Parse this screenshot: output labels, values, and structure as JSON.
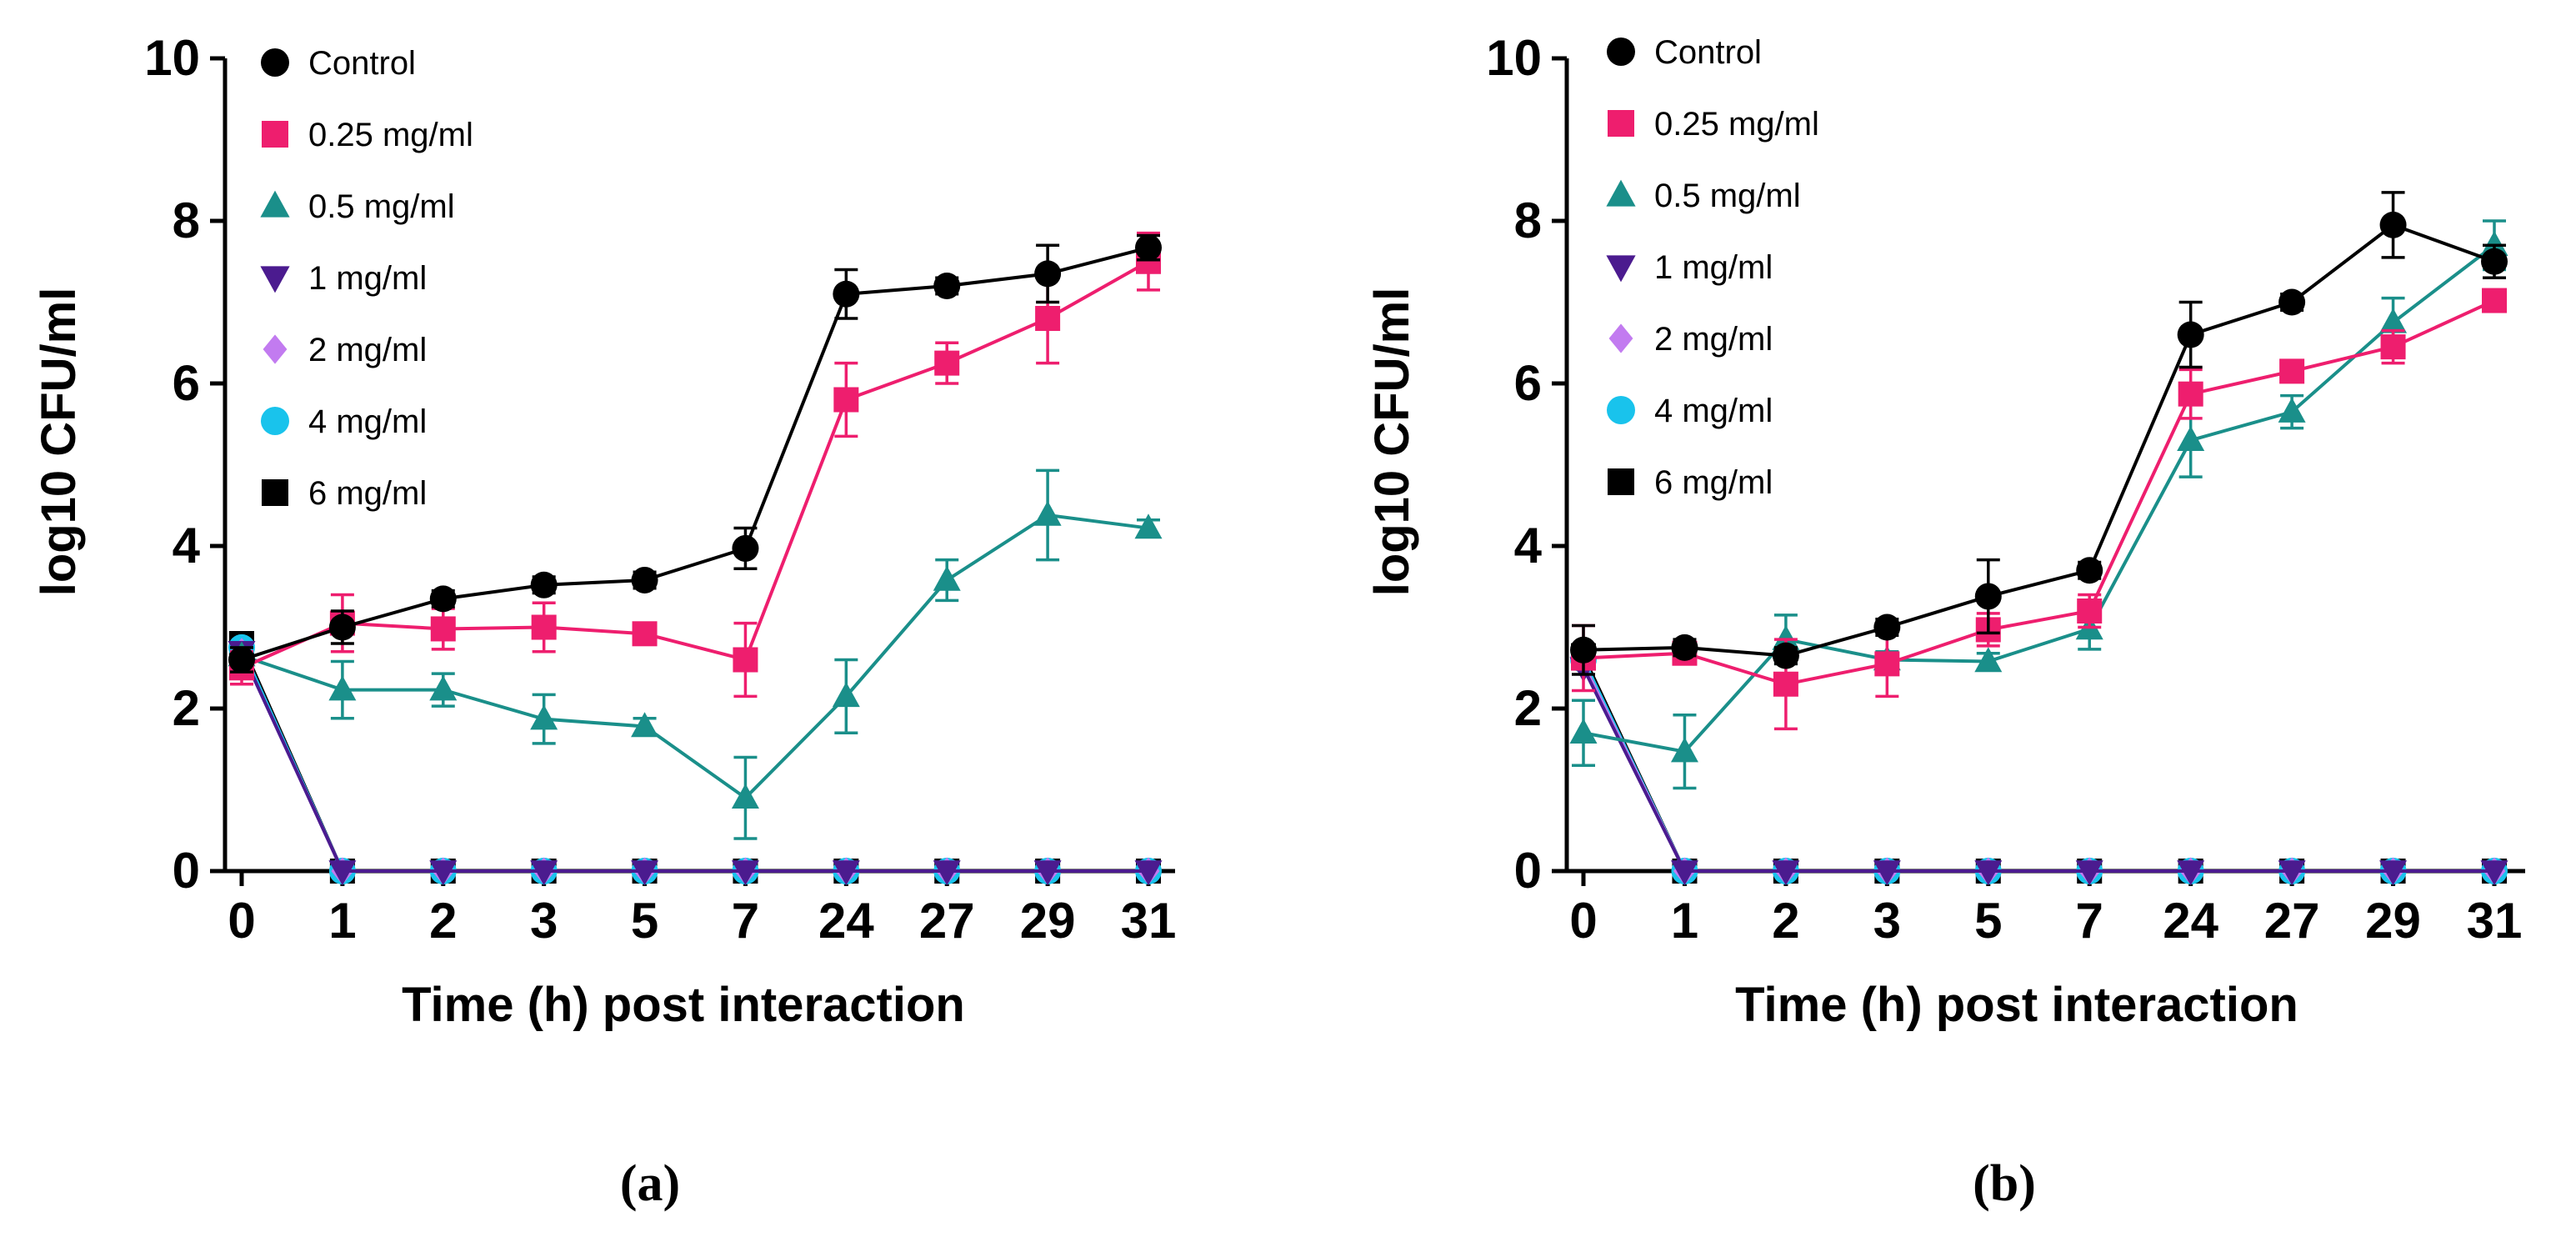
{
  "chart_data": [
    {
      "panel": "(a)",
      "type": "line",
      "xlabel": "Time (h) post interaction",
      "ylabel": "log10 CFU/ml",
      "categories": [
        "0",
        "1",
        "2",
        "3",
        "5",
        "7",
        "24",
        "27",
        "29",
        "31"
      ],
      "ylim": [
        0,
        10
      ],
      "yticks": [
        0,
        2,
        4,
        6,
        8,
        10
      ],
      "legend_position": "top-left",
      "series": [
        {
          "name": "Control",
          "color": "#000000",
          "marker": "circle",
          "values": [
            2.6,
            3.0,
            3.35,
            3.52,
            3.58,
            3.97,
            7.1,
            7.2,
            7.35,
            7.67
          ],
          "errors": [
            0.15,
            0.2,
            0.1,
            0.1,
            0.1,
            0.25,
            0.3,
            0.1,
            0.35,
            0.15
          ]
        },
        {
          "name": "0.25 mg/ml",
          "color": "#ee1e6e",
          "marker": "square",
          "values": [
            2.5,
            3.05,
            2.98,
            3.0,
            2.92,
            2.6,
            5.8,
            6.25,
            6.8,
            7.5
          ],
          "errors": [
            0.2,
            0.35,
            0.25,
            0.3,
            0.1,
            0.45,
            0.45,
            0.25,
            0.55,
            0.35
          ]
        },
        {
          "name": "0.5 mg/ml",
          "color": "#1a8f8a",
          "marker": "triangle",
          "values": [
            2.65,
            2.23,
            2.23,
            1.87,
            1.78,
            0.9,
            2.15,
            3.58,
            4.38,
            4.22
          ],
          "errors": [
            0.1,
            0.35,
            0.2,
            0.3,
            0.1,
            0.5,
            0.45,
            0.25,
            0.55,
            0.1
          ]
        },
        {
          "name": "1 mg/ml",
          "color": "#4b1b8f",
          "marker": "triangle-down",
          "values": [
            2.7,
            0,
            0,
            0,
            0,
            0,
            0,
            0,
            0,
            0
          ]
        },
        {
          "name": "2 mg/ml",
          "color": "#c27bf0",
          "marker": "diamond",
          "values": [
            2.7,
            0,
            0,
            0,
            0,
            0,
            0,
            0,
            0,
            0
          ]
        },
        {
          "name": "4 mg/ml",
          "color": "#19c3ec",
          "marker": "circle",
          "values": [
            2.75,
            0,
            0,
            0,
            0,
            0,
            0,
            0,
            0,
            0
          ]
        },
        {
          "name": "6 mg/ml",
          "color": "#000000",
          "marker": "square",
          "values": [
            2.8,
            0,
            0,
            0,
            0,
            0,
            0,
            0,
            0,
            0
          ]
        }
      ]
    },
    {
      "panel": "(b)",
      "type": "line",
      "xlabel": "Time (h) post interaction",
      "ylabel": "log10 CFU/ml",
      "categories": [
        "0",
        "1",
        "2",
        "3",
        "5",
        "7",
        "24",
        "27",
        "29",
        "31"
      ],
      "ylim": [
        0,
        10
      ],
      "yticks": [
        0,
        2,
        4,
        6,
        8,
        10
      ],
      "legend_position": "top-left",
      "series": [
        {
          "name": "Control",
          "color": "#000000",
          "marker": "circle",
          "values": [
            2.72,
            2.75,
            2.65,
            3.0,
            3.38,
            3.7,
            6.6,
            7.0,
            7.95,
            7.5
          ],
          "errors": [
            0.3,
            0.1,
            0.1,
            0.1,
            0.45,
            0.1,
            0.4,
            0.1,
            0.4,
            0.2
          ]
        },
        {
          "name": "0.25 mg/ml",
          "color": "#ee1e6e",
          "marker": "square",
          "values": [
            2.62,
            2.68,
            2.3,
            2.55,
            2.97,
            3.2,
            5.87,
            6.15,
            6.45,
            7.02
          ],
          "errors": [
            0.4,
            0.1,
            0.55,
            0.4,
            0.2,
            0.2,
            0.3,
            0.1,
            0.2,
            0.1
          ]
        },
        {
          "name": "0.5 mg/ml",
          "color": "#1a8f8a",
          "marker": "triangle",
          "values": [
            1.7,
            1.47,
            2.85,
            2.6,
            2.58,
            2.98,
            5.3,
            5.65,
            6.75,
            7.7
          ],
          "errors": [
            0.4,
            0.45,
            0.3,
            0.1,
            0.1,
            0.25,
            0.45,
            0.2,
            0.3,
            0.3
          ]
        },
        {
          "name": "1 mg/ml",
          "color": "#4b1b8f",
          "marker": "triangle-down",
          "values": [
            2.5,
            0,
            0,
            0,
            0,
            0,
            0,
            0,
            0,
            0
          ]
        },
        {
          "name": "2 mg/ml",
          "color": "#c27bf0",
          "marker": "diamond",
          "values": [
            2.55,
            0,
            0,
            0,
            0,
            0,
            0,
            0,
            0,
            0
          ]
        },
        {
          "name": "4 mg/ml",
          "color": "#19c3ec",
          "marker": "circle",
          "values": [
            2.6,
            0,
            0,
            0,
            0,
            0,
            0,
            0,
            0,
            0
          ]
        },
        {
          "name": "6 mg/ml",
          "color": "#000000",
          "marker": "square",
          "values": [
            2.65,
            0,
            0,
            0,
            0,
            0,
            0,
            0,
            0,
            0
          ]
        }
      ]
    }
  ]
}
